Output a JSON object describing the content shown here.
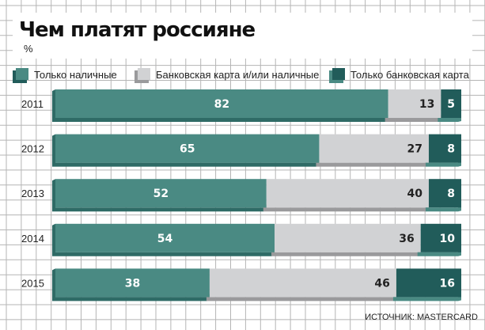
{
  "chart_data": {
    "type": "bar",
    "stacked": true,
    "orientation": "horizontal",
    "title": "Чем платят россияне",
    "subtitle": "%",
    "categories": [
      "2011",
      "2012",
      "2013",
      "2014",
      "2015"
    ],
    "series": [
      {
        "name": "Только наличные",
        "values": [
          82,
          65,
          52,
          54,
          38
        ],
        "color": "#4a8a83",
        "label_color": "#ffffff"
      },
      {
        "name": "Банковская карта и/или наличные",
        "values": [
          13,
          27,
          40,
          36,
          46
        ],
        "color": "#d1d2d4",
        "label_color": "#222222"
      },
      {
        "name": "Только банковская карта",
        "values": [
          5,
          8,
          8,
          10,
          16
        ],
        "color": "#215c5a",
        "label_color": "#ffffff"
      }
    ],
    "xlim": [
      0,
      100
    ],
    "legend": "top",
    "source": "ИСТОЧНИК: MASTERCARD",
    "grid": true
  }
}
